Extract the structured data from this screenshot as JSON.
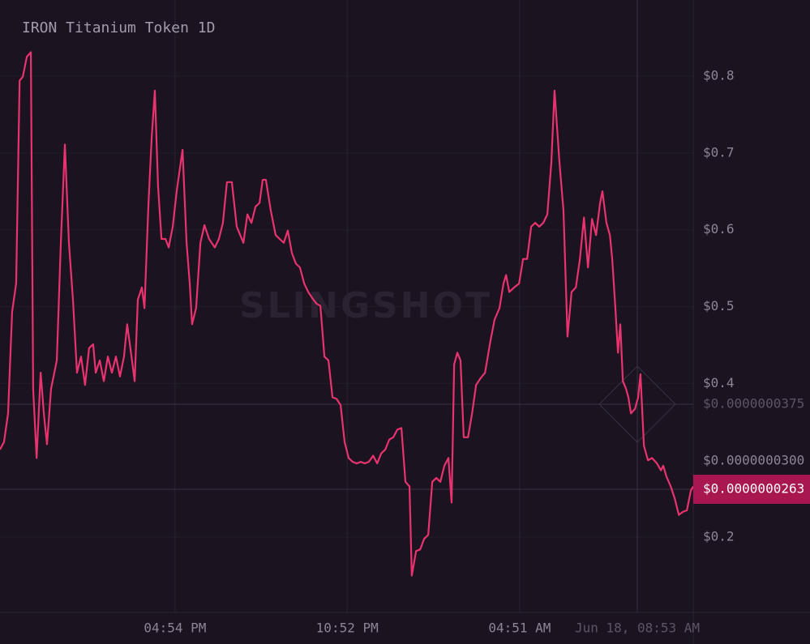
{
  "chart_data": {
    "type": "line",
    "title": "IRON Titanium Token 1D",
    "watermark": "SLINGSHOT",
    "x": [
      10.83,
      10.97,
      11.11,
      11.25,
      11.39,
      11.51,
      11.62,
      11.76,
      11.9,
      11.98,
      12.1,
      12.24,
      12.35,
      12.46,
      12.6,
      12.8,
      12.94,
      13.08,
      13.22,
      13.36,
      13.5,
      13.64,
      13.78,
      13.92,
      14.06,
      14.15,
      14.29,
      14.43,
      14.57,
      14.71,
      14.85,
      14.99,
      15.13,
      15.24,
      15.39,
      15.5,
      15.61,
      15.75,
      15.84,
      15.98,
      16.09,
      16.2,
      16.31,
      16.43,
      16.57,
      16.68,
      16.82,
      16.96,
      17.16,
      17.3,
      17.41,
      17.49,
      17.63,
      17.78,
      17.92,
      18.08,
      18.28,
      18.42,
      18.56,
      18.7,
      18.87,
      19.04,
      19.27,
      19.41,
      19.55,
      19.69,
      19.83,
      19.94,
      20.05,
      20.22,
      20.39,
      20.53,
      20.67,
      20.81,
      20.95,
      21.09,
      21.23,
      21.38,
      21.52,
      21.66,
      21.8,
      21.94,
      22.08,
      22.22,
      22.36,
      22.5,
      22.64,
      22.78,
      22.92,
      23.06,
      23.2,
      23.34,
      23.48,
      23.62,
      23.77,
      23.91,
      24.05,
      24.19,
      24.33,
      24.47,
      24.61,
      24.75,
      24.89,
      25.03,
      25.11,
      25.26,
      25.4,
      25.54,
      25.68,
      25.82,
      25.96,
      26.1,
      26.24,
      26.38,
      26.49,
      26.58,
      26.69,
      26.8,
      26.91,
      27.06,
      27.2,
      27.34,
      27.48,
      27.65,
      27.84,
      27.98,
      28.15,
      28.29,
      28.38,
      28.49,
      28.66,
      28.83,
      28.97,
      29.11,
      29.25,
      29.39,
      29.53,
      29.67,
      29.81,
      29.95,
      30.06,
      30.23,
      30.37,
      30.51,
      30.65,
      30.8,
      30.94,
      31.08,
      31.22,
      31.36,
      31.5,
      31.64,
      31.72,
      31.86,
      31.98,
      32.06,
      32.17,
      32.26,
      32.34,
      32.43,
      32.54,
      32.62,
      32.71,
      32.85,
      32.96,
      33.04,
      33.16,
      33.3,
      33.44,
      33.61,
      33.75,
      33.83,
      33.94,
      34.09,
      34.23,
      34.37,
      34.51,
      34.65,
      34.79,
      34.87
    ],
    "series": [
      {
        "color": "#e8336f",
        "values": [
          0.314,
          0.324,
          0.361,
          0.493,
          0.53,
          0.794,
          0.799,
          0.825,
          0.831,
          0.393,
          0.303,
          0.414,
          0.361,
          0.321,
          0.393,
          0.43,
          0.583,
          0.711,
          0.583,
          0.509,
          0.414,
          0.435,
          0.398,
          0.446,
          0.451,
          0.414,
          0.43,
          0.403,
          0.435,
          0.414,
          0.435,
          0.409,
          0.435,
          0.477,
          0.435,
          0.403,
          0.509,
          0.525,
          0.498,
          0.635,
          0.72,
          0.781,
          0.657,
          0.588,
          0.588,
          0.577,
          0.604,
          0.651,
          0.704,
          0.583,
          0.53,
          0.477,
          0.498,
          0.583,
          0.606,
          0.588,
          0.577,
          0.588,
          0.609,
          0.662,
          0.662,
          0.604,
          0.583,
          0.62,
          0.609,
          0.63,
          0.635,
          0.665,
          0.665,
          0.625,
          0.593,
          0.588,
          0.583,
          0.599,
          0.57,
          0.556,
          0.551,
          0.53,
          0.519,
          0.511,
          0.504,
          0.501,
          0.435,
          0.43,
          0.382,
          0.38,
          0.372,
          0.324,
          0.303,
          0.298,
          0.296,
          0.298,
          0.296,
          0.298,
          0.306,
          0.296,
          0.309,
          0.314,
          0.327,
          0.33,
          0.34,
          0.342,
          0.272,
          0.266,
          0.15,
          0.182,
          0.184,
          0.198,
          0.203,
          0.272,
          0.277,
          0.272,
          0.293,
          0.303,
          0.245,
          0.425,
          0.44,
          0.43,
          0.33,
          0.33,
          0.361,
          0.398,
          0.406,
          0.414,
          0.456,
          0.483,
          0.498,
          0.53,
          0.541,
          0.519,
          0.525,
          0.53,
          0.562,
          0.562,
          0.604,
          0.609,
          0.604,
          0.609,
          0.62,
          0.688,
          0.781,
          0.688,
          0.625,
          0.461,
          0.519,
          0.525,
          0.562,
          0.616,
          0.551,
          0.614,
          0.593,
          0.635,
          0.65,
          0.609,
          0.593,
          0.562,
          0.498,
          0.44,
          0.477,
          0.403,
          0.393,
          0.382,
          0.361,
          0.367,
          0.382,
          0.412,
          0.319,
          0.3,
          0.303,
          0.296,
          0.287,
          0.293,
          0.279,
          0.266,
          0.25,
          0.229,
          0.233,
          0.235,
          0.261,
          0.266
        ]
      }
    ],
    "xlim": [
      10.83,
      34.87
    ],
    "xticks": [
      {
        "value": 16.9,
        "label": "04:54 PM"
      },
      {
        "value": 22.87,
        "label": "10:52 PM"
      },
      {
        "value": 28.85,
        "label": "04:51 AM"
      }
    ],
    "ylim": [
      0.1,
      0.9
    ],
    "yticks": [
      {
        "value": 0.2,
        "label": "$0.2"
      },
      {
        "value": 0.4,
        "label": "$0.4"
      },
      {
        "value": 0.5,
        "label": "$0.5"
      },
      {
        "value": 0.6,
        "label": "$0.6"
      },
      {
        "value": 0.7,
        "label": "$0.7"
      },
      {
        "value": 0.8,
        "label": "$0.8"
      }
    ],
    "axis_note": "$0.0000000300",
    "crosshair": {
      "x_label": "Jun 18, 08:53 AM",
      "y_label": "$0.0000000375"
    },
    "last_price_label": "$0.0000000263",
    "grid": true
  }
}
